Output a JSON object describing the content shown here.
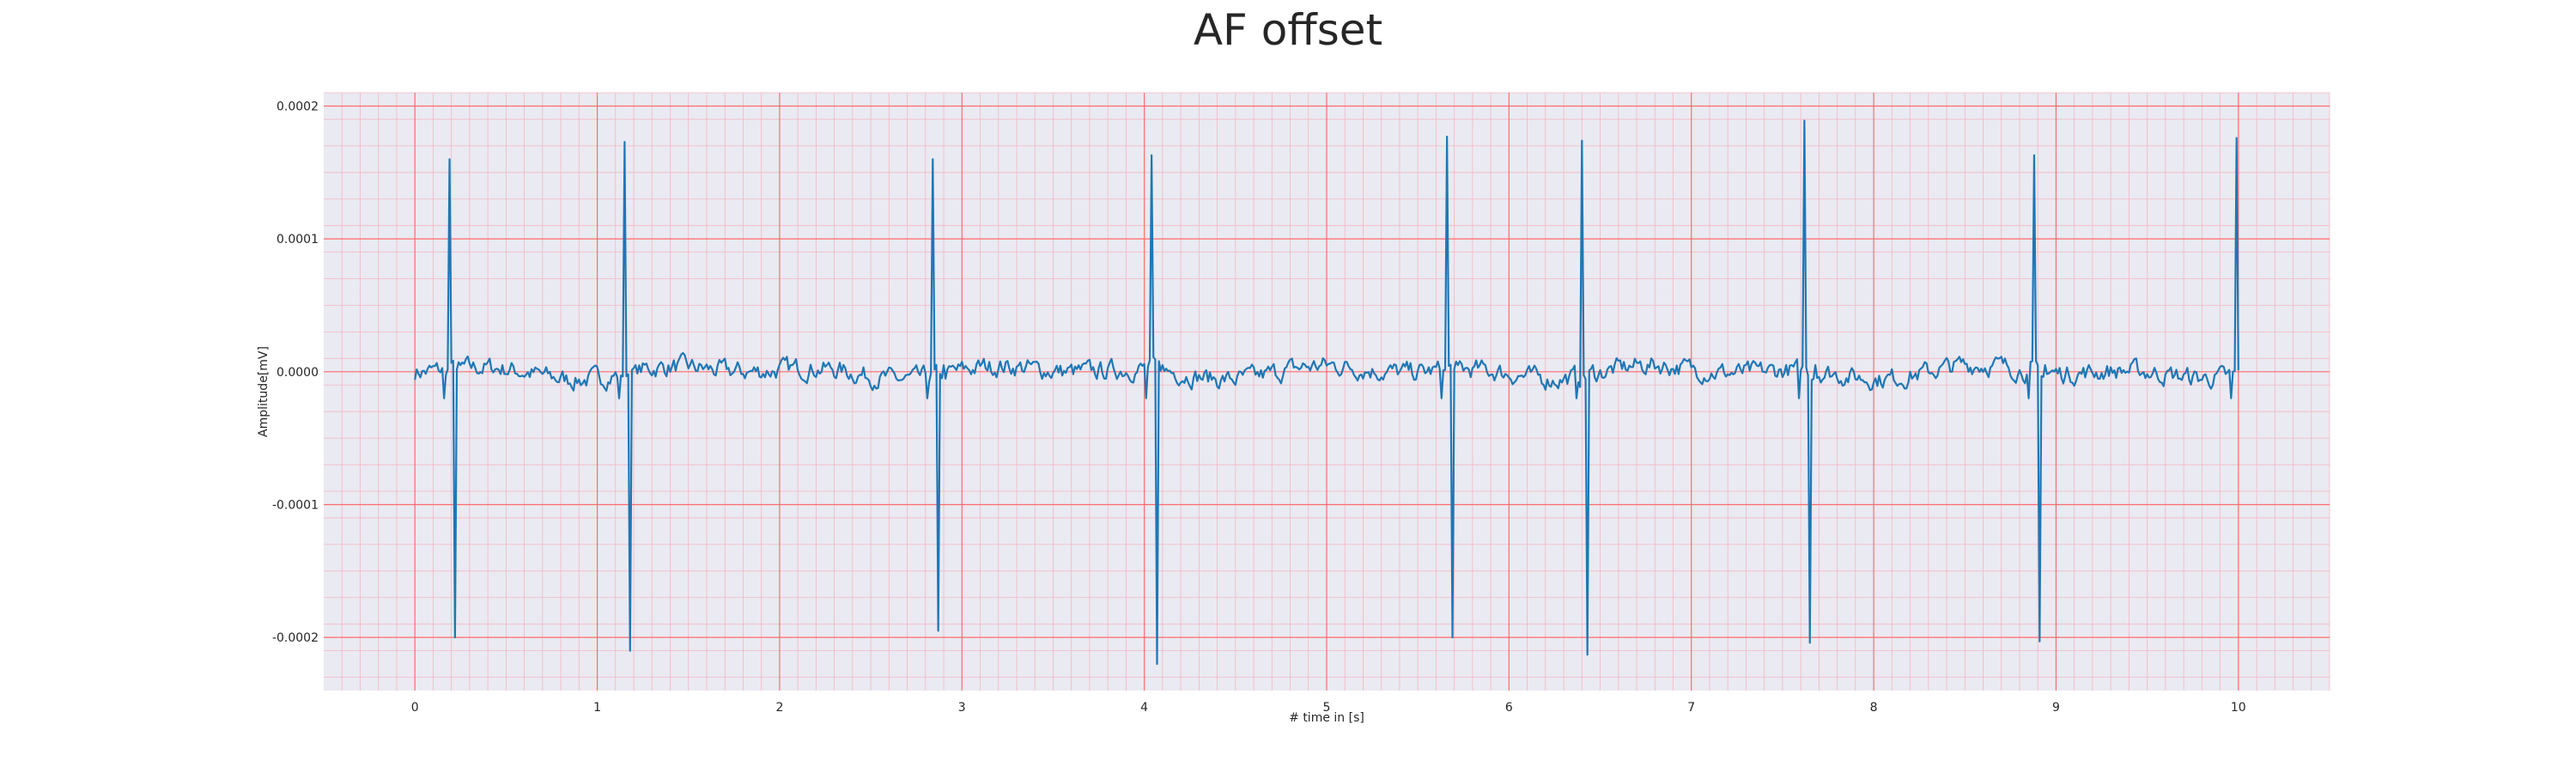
{
  "chart_data": {
    "type": "line",
    "title": "AF offset",
    "xlabel": "# time in [s]",
    "ylabel": "Amplitude[mV]",
    "xlim": [
      -0.5,
      10.5
    ],
    "ylim": [
      -0.00024,
      0.00021
    ],
    "xticks": [
      0,
      1,
      2,
      3,
      4,
      5,
      6,
      7,
      8,
      9,
      10
    ],
    "xtick_labels": [
      "0",
      "1",
      "2",
      "3",
      "4",
      "5",
      "6",
      "7",
      "8",
      "9",
      "10"
    ],
    "yticks": [
      -0.0002,
      -0.0001,
      0.0,
      0.0001,
      0.0002
    ],
    "ytick_labels": [
      "-0.0002",
      "-0.0001",
      "0.0000",
      "0.0001",
      "0.0002"
    ],
    "grid": true,
    "minor_grid": true,
    "background_color": "#eaeaf2",
    "major_grid_color": "#ff6b6b",
    "minor_grid_color": "#f4b6c2",
    "line_color": "#1f77b4",
    "sampling_interval_s": 0.01,
    "beats": [
      {
        "t": 0.19,
        "r_peak": 0.00016,
        "s_trough": -0.0002
      },
      {
        "t": 1.15,
        "r_peak": 0.000173,
        "s_trough": -0.00021
      },
      {
        "t": 2.84,
        "r_peak": 0.00016,
        "s_trough": -0.000195
      },
      {
        "t": 4.04,
        "r_peak": 0.000163,
        "s_trough": -0.00022
      },
      {
        "t": 5.66,
        "r_peak": 0.000177,
        "s_trough": -0.0002
      },
      {
        "t": 6.4,
        "r_peak": 0.000174,
        "s_trough": -0.000213
      },
      {
        "t": 7.62,
        "r_peak": 0.000189,
        "s_trough": -0.000204
      },
      {
        "t": 8.88,
        "r_peak": 0.000163,
        "s_trough": -0.000203
      },
      {
        "t": 9.99,
        "r_peak": 0.000176,
        "s_trough": -2e-05
      }
    ]
  }
}
